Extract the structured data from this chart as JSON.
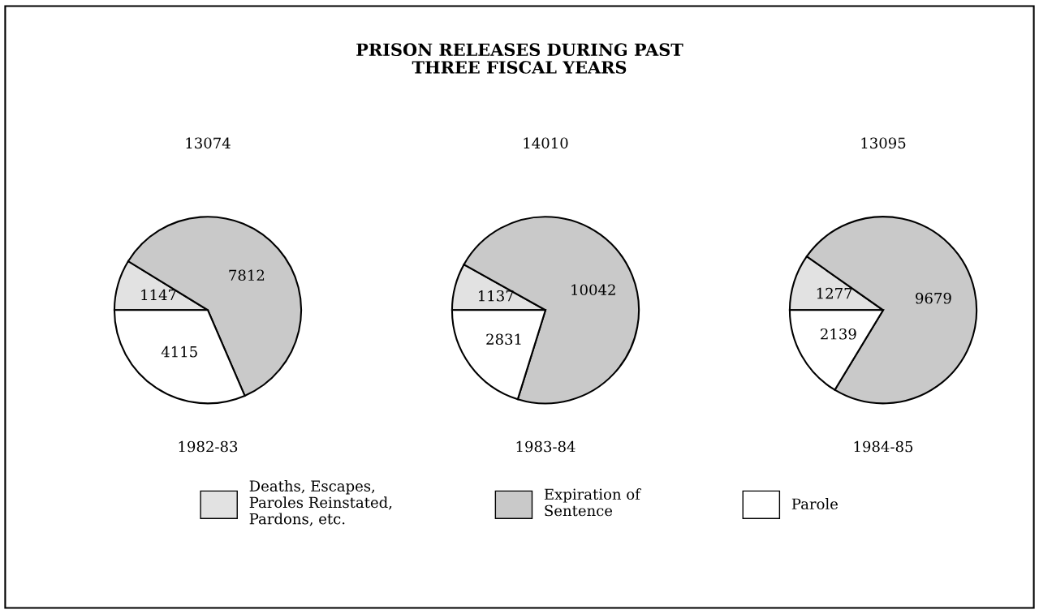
{
  "chart_data": [
    {
      "type": "pie",
      "title": "13074",
      "xlabel": "1982-83",
      "annotations": [
        "PRISON RELEASES DURING PAST\nTHREE FISCAL YEARS"
      ],
      "legend": "bottom",
      "categories": [
        "Deaths, Escapes,\nParoles Reinstated,\nPardons, etc.",
        "Expiration of\nSentence",
        "Parole"
      ],
      "values": [
        1147,
        7812,
        4115
      ],
      "colors": [
        "#e2e2e2",
        "#c9c9c9",
        "#ffffff"
      ],
      "data_labels": true
    },
    {
      "type": "pie",
      "title": "14010",
      "xlabel": "1983-84",
      "values": [
        1137,
        10042,
        2831
      ],
      "colors": [
        "#e2e2e2",
        "#c9c9c9",
        "#ffffff"
      ],
      "data_labels": true
    },
    {
      "type": "pie",
      "title": "13095",
      "xlabel": "1984-85",
      "values": [
        1277,
        9679,
        2139
      ],
      "colors": [
        "#e2e2e2",
        "#c9c9c9",
        "#ffffff"
      ],
      "data_labels": true
    }
  ]
}
